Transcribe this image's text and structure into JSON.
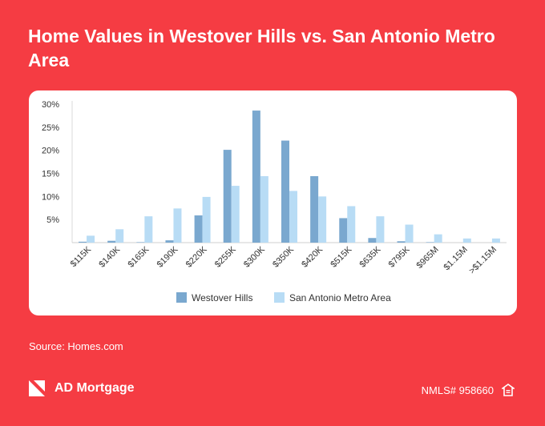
{
  "header": {
    "title": "Home Values in Westover Hills vs. San Antonio Metro Area"
  },
  "footer": {
    "source": "Source: Homes.com",
    "brand_name": "AD Mortgage",
    "nmls": "NMLS# 958660"
  },
  "icons": {
    "logo": "ad-mortgage-logo-icon",
    "equal_housing": "equal-housing-icon"
  },
  "colors": {
    "background": "#f53c43",
    "westover": "#7aa8cf",
    "san_antonio": "#b8dcf5"
  },
  "chart_data": {
    "type": "bar",
    "categories": [
      "$115K",
      "$140K",
      "$165K",
      "$190K",
      "$220K",
      "$255K",
      "$300K",
      "$350K",
      "$420K",
      "$515K",
      "$635K",
      "$795K",
      "$965M",
      "$1.15M",
      ">$1.15M"
    ],
    "y_ticks": [
      "30%",
      "25%",
      "20%",
      "15%",
      "10%",
      "5%"
    ],
    "ylim": [
      0,
      30
    ],
    "series": [
      {
        "name": "Westover Hills",
        "values": [
          0.2,
          0.4,
          0.1,
          0.5,
          5.9,
          20.1,
          28.6,
          22.1,
          14.4,
          5.3,
          1.0,
          0.3,
          0.1,
          0.0,
          0.0
        ]
      },
      {
        "name": "San Antonio Metro Area",
        "values": [
          1.5,
          2.9,
          5.7,
          7.4,
          9.9,
          12.3,
          14.4,
          11.2,
          10.0,
          7.9,
          5.7,
          3.9,
          1.8,
          0.9,
          0.9
        ]
      }
    ],
    "legend": "bottom",
    "grid": false
  }
}
